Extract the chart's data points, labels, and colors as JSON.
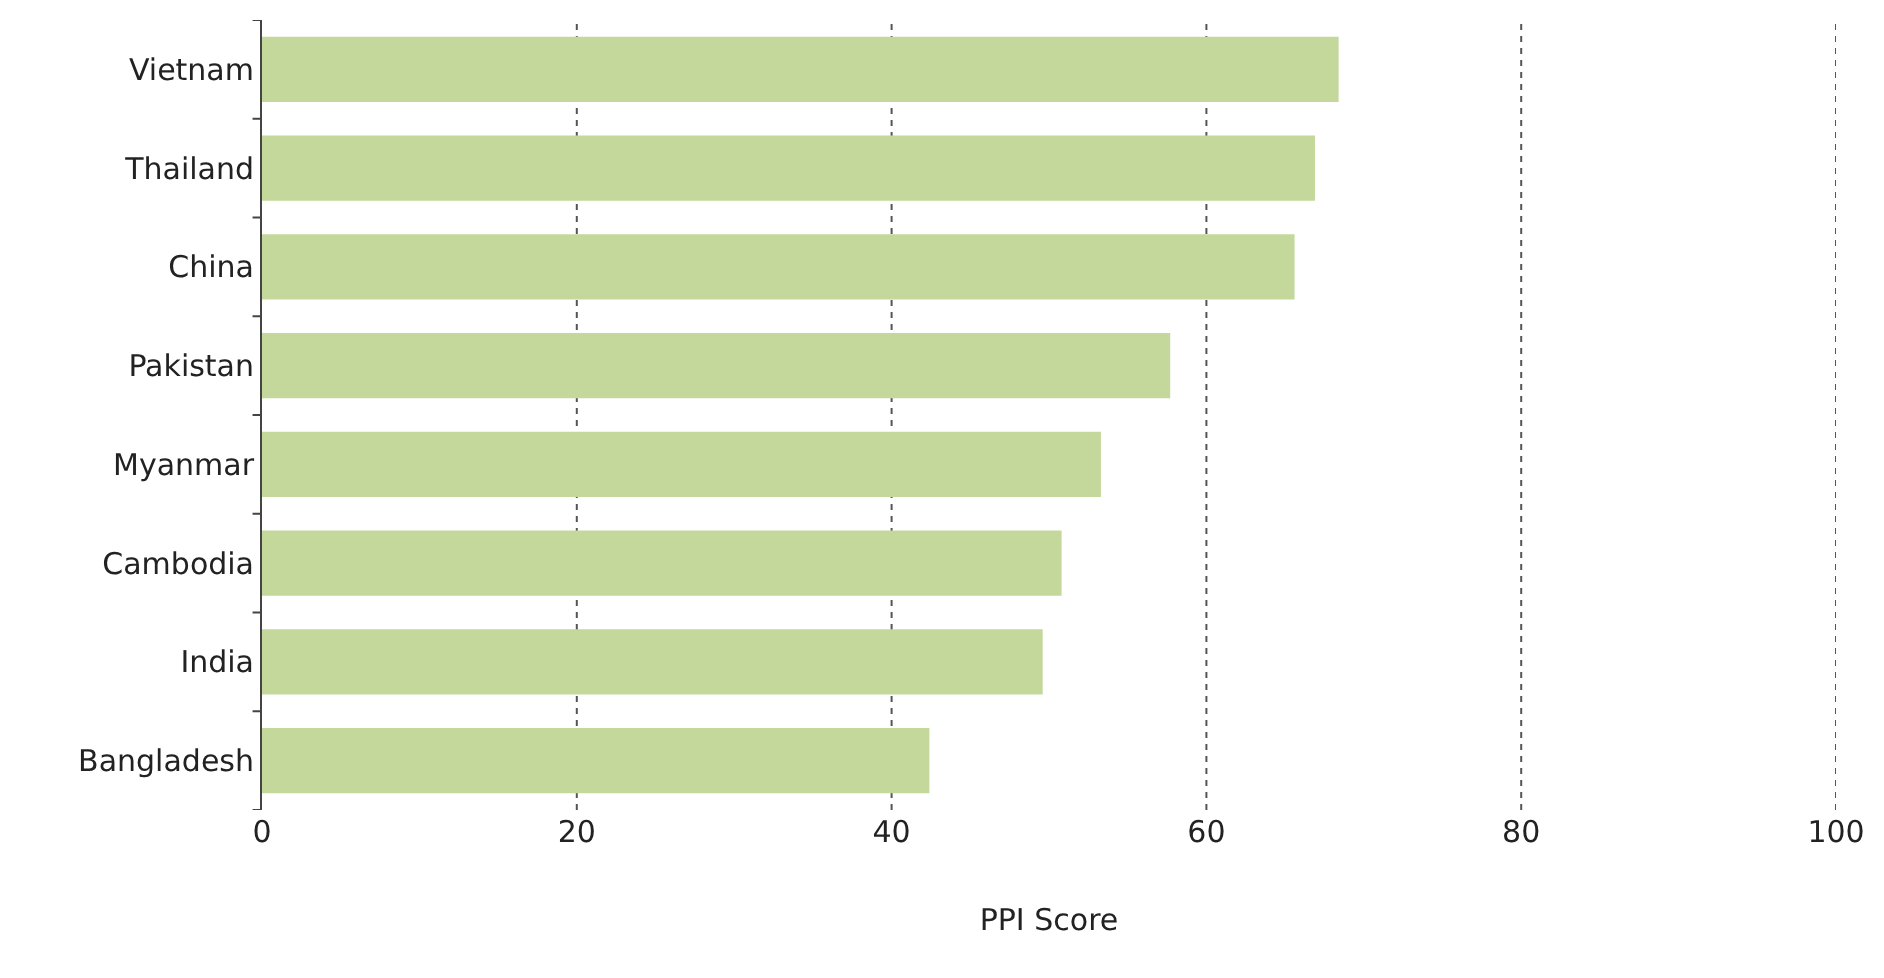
{
  "chart_data": {
    "type": "bar",
    "orientation": "horizontal",
    "xlabel": "PPI Score",
    "categories": [
      "Vietnam",
      "Thailand",
      "China",
      "Pakistan",
      "Myanmar",
      "Cambodia",
      "India",
      "Bangladesh"
    ],
    "values": [
      68.4,
      66.9,
      65.6,
      57.7,
      53.3,
      50.8,
      49.6,
      42.4
    ],
    "color": "#c4d89c",
    "xlim": [
      0,
      100
    ],
    "xticks": [
      0,
      20,
      40,
      60,
      80,
      100
    ],
    "grid": "x"
  }
}
